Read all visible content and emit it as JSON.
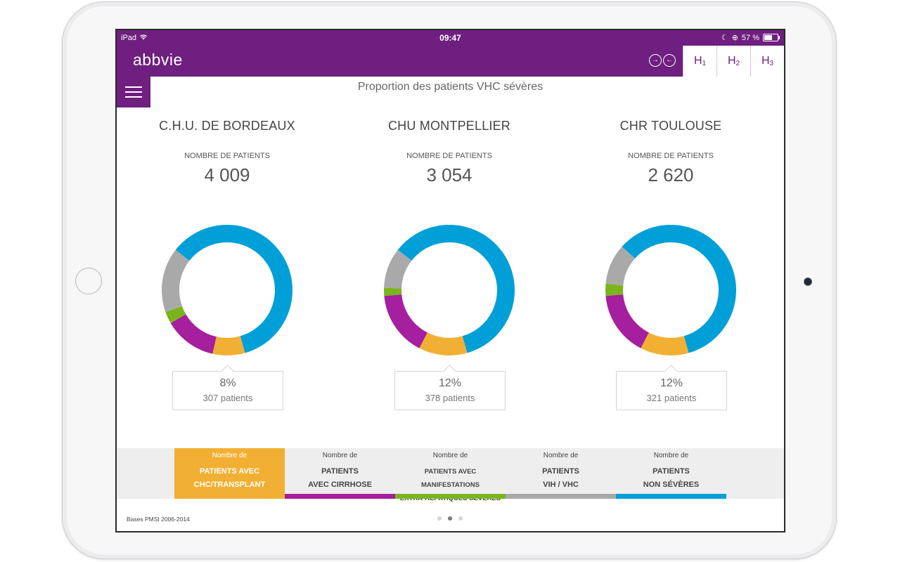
{
  "status_bar": {
    "device": "iPad",
    "time": "09:47",
    "battery": "57 %"
  },
  "header": {
    "logo": "abbvie",
    "nav_icons": [
      "forward-circle-icon",
      "back-circle-icon"
    ],
    "tabs": [
      {
        "label": "H",
        "sub": "1",
        "active": true
      },
      {
        "label": "H",
        "sub": "2",
        "active": false
      },
      {
        "label": "H",
        "sub": "3",
        "active": false
      }
    ]
  },
  "page_title": "Proportion des patients VHC sévères",
  "colors": {
    "brand": "#6e1f7f",
    "chc_transplant": "#f1b033",
    "cirrhose": "#a61f9e",
    "extra_hepatiques": "#7ab51d",
    "vih_vhc": "#a9a9a9",
    "non_severes": "#009fd8"
  },
  "hospitals": [
    {
      "name": "C.H.U. DE BORDEAUX",
      "count_label": "NOMBRE DE PATIENTS",
      "count": "4 009",
      "callout_pct": "8%",
      "callout_patients": "307 patients",
      "segments": [
        {
          "key": "non_severes",
          "value": 54
        },
        {
          "key": "chc_transplant",
          "value": 8
        },
        {
          "key": "cirrhose",
          "value": 13
        },
        {
          "key": "extra_hepatiques",
          "value": 3
        },
        {
          "key": "vih_vhc",
          "value": 16
        },
        {
          "key": "non_severes",
          "value": 6
        }
      ]
    },
    {
      "name": "CHU MONTPELLIER",
      "count_label": "NOMBRE DE PATIENTS",
      "count": "3 054",
      "callout_pct": "12%",
      "callout_patients": "378 patients",
      "segments": [
        {
          "key": "non_severes",
          "value": 54
        },
        {
          "key": "chc_transplant",
          "value": 12
        },
        {
          "key": "cirrhose",
          "value": 16
        },
        {
          "key": "extra_hepatiques",
          "value": 2
        },
        {
          "key": "vih_vhc",
          "value": 10
        },
        {
          "key": "non_severes",
          "value": 6
        }
      ]
    },
    {
      "name": "CHR TOULOUSE",
      "count_label": "NOMBRE DE PATIENTS",
      "count": "2 620",
      "callout_pct": "12%",
      "callout_patients": "321 patients",
      "segments": [
        {
          "key": "non_severes",
          "value": 54
        },
        {
          "key": "chc_transplant",
          "value": 12
        },
        {
          "key": "cirrhose",
          "value": 16
        },
        {
          "key": "extra_hepatiques",
          "value": 3
        },
        {
          "key": "vih_vhc",
          "value": 10
        },
        {
          "key": "non_severes",
          "value": 5
        }
      ]
    }
  ],
  "legend": [
    {
      "small": "Nombre de",
      "line1": "PATIENTS AVEC",
      "line2": "CHC/TRANSPLANT",
      "key": "chc_transplant",
      "active": true
    },
    {
      "small": "Nombre de",
      "line1": "PATIENTS",
      "line2": "AVEC CIRRHOSE",
      "key": "cirrhose",
      "active": false
    },
    {
      "small": "Nombre de",
      "line1": "PATIENTS AVEC MANIFESTATIONS",
      "line2": "EXTRA-HÉPATIQUES SÉVÈRES",
      "key": "extra_hepatiques",
      "active": false
    },
    {
      "small": "Nombre de",
      "line1": "PATIENTS",
      "line2": "VIH / VHC",
      "key": "vih_vhc",
      "active": false
    },
    {
      "small": "Nombre de",
      "line1": "PATIENTS",
      "line2": "NON SÉVÈRES",
      "key": "non_severes",
      "active": false
    }
  ],
  "footer": {
    "source": "Bases PMSI 2006-2014",
    "page_dots": 3,
    "active_dot": 1
  }
}
